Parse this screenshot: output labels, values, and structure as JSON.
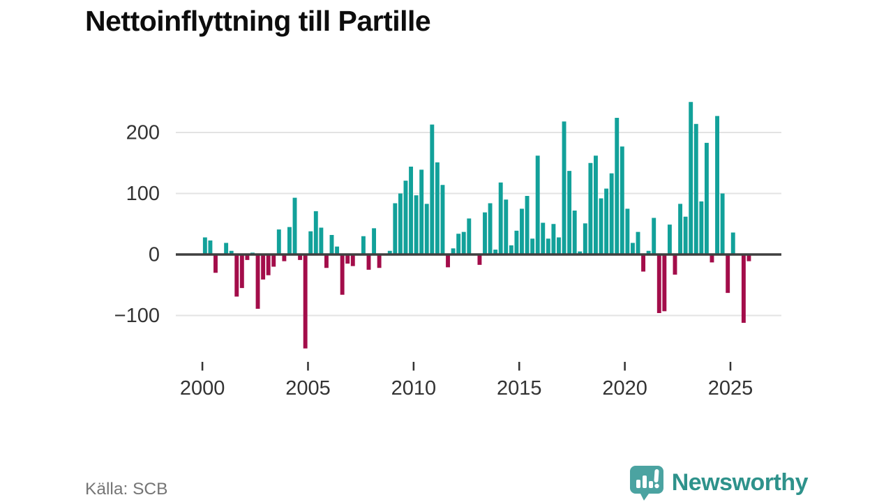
{
  "title": "Nettoinflyttning till Partille",
  "source": "Källa: SCB",
  "branding": {
    "logo_text": "Newsworthy",
    "logo_icon": "newsworthy-speech-bubble-bar-chart-icon"
  },
  "colors": {
    "bar_positive": "#12a19a",
    "bar_negative": "#a30d4a",
    "gridline": "#e3e3e3",
    "zero_axis": "#3f3f3f",
    "axis_label": "#333333",
    "title": "#0d0d0d",
    "source_text": "#757575",
    "logo_bubble": "#4ba3a1",
    "logo_text": "#2e928b"
  },
  "chart_data": {
    "type": "bar",
    "title": "Nettoinflyttning till Partille",
    "xlabel": "",
    "ylabel": "",
    "frequency": "quarterly",
    "grid": "horizontal",
    "legend": "none",
    "ylim": [
      -172,
      262
    ],
    "y_ticks": [
      200,
      100,
      0,
      -100
    ],
    "y_grid_values": [
      200,
      100,
      -100
    ],
    "x_tick_labels": [
      "2000",
      "2005",
      "2010",
      "2015",
      "2020",
      "2025"
    ],
    "x_tick_quarter_index": [
      0,
      20,
      40,
      60,
      80,
      100
    ],
    "x": [
      "2000 Q1",
      "2000 Q2",
      "2000 Q3",
      "2000 Q4",
      "2001 Q1",
      "2001 Q2",
      "2001 Q3",
      "2001 Q4",
      "2002 Q1",
      "2002 Q2",
      "2002 Q3",
      "2002 Q4",
      "2003 Q1",
      "2003 Q2",
      "2003 Q3",
      "2003 Q4",
      "2004 Q1",
      "2004 Q2",
      "2004 Q3",
      "2004 Q4",
      "2005 Q1",
      "2005 Q2",
      "2005 Q3",
      "2005 Q4",
      "2006 Q1",
      "2006 Q2",
      "2006 Q3",
      "2006 Q4",
      "2007 Q1",
      "2007 Q2",
      "2007 Q3",
      "2007 Q4",
      "2008 Q1",
      "2008 Q2",
      "2008 Q3",
      "2008 Q4",
      "2009 Q1",
      "2009 Q2",
      "2009 Q3",
      "2009 Q4",
      "2010 Q1",
      "2010 Q2",
      "2010 Q3",
      "2010 Q4",
      "2011 Q1",
      "2011 Q2",
      "2011 Q3",
      "2011 Q4",
      "2012 Q1",
      "2012 Q2",
      "2012 Q3",
      "2012 Q4",
      "2013 Q1",
      "2013 Q2",
      "2013 Q3",
      "2013 Q4",
      "2014 Q1",
      "2014 Q2",
      "2014 Q3",
      "2014 Q4",
      "2015 Q1",
      "2015 Q2",
      "2015 Q3",
      "2015 Q4",
      "2016 Q1",
      "2016 Q2",
      "2016 Q3",
      "2016 Q4",
      "2017 Q1",
      "2017 Q2",
      "2017 Q3",
      "2017 Q4",
      "2018 Q1",
      "2018 Q2",
      "2018 Q3",
      "2018 Q4",
      "2019 Q1",
      "2019 Q2",
      "2019 Q3",
      "2019 Q4",
      "2020 Q1",
      "2020 Q2",
      "2020 Q3",
      "2020 Q4",
      "2021 Q1",
      "2021 Q2",
      "2021 Q3",
      "2021 Q4",
      "2022 Q1",
      "2022 Q2",
      "2022 Q3",
      "2022 Q4",
      "2023 Q1",
      "2023 Q2",
      "2023 Q3",
      "2023 Q4",
      "2024 Q1",
      "2024 Q2",
      "2024 Q3",
      "2024 Q4",
      "2025 Q1",
      "2025 Q2",
      "2025 Q3",
      "2025 Q4"
    ],
    "values": [
      28,
      23,
      -30,
      0,
      19,
      6,
      -69,
      -55,
      -9,
      3,
      -89,
      -41,
      -34,
      -20,
      41,
      -11,
      45,
      93,
      -9,
      -154,
      38,
      71,
      44,
      -22,
      32,
      13,
      -66,
      -15,
      -19,
      0,
      30,
      -25,
      43,
      -22,
      0,
      6,
      84,
      100,
      121,
      144,
      97,
      139,
      83,
      213,
      151,
      114,
      -21,
      10,
      34,
      37,
      59,
      0,
      -17,
      69,
      84,
      8,
      118,
      90,
      15,
      39,
      75,
      96,
      26,
      162,
      52,
      26,
      50,
      28,
      218,
      137,
      72,
      5,
      51,
      150,
      162,
      92,
      108,
      133,
      224,
      177,
      75,
      19,
      37,
      -28,
      6,
      60,
      -96,
      -93,
      49,
      -33,
      83,
      62,
      250,
      214,
      87,
      183,
      -13,
      227,
      100,
      -63,
      36,
      0,
      -112,
      -11
    ]
  }
}
